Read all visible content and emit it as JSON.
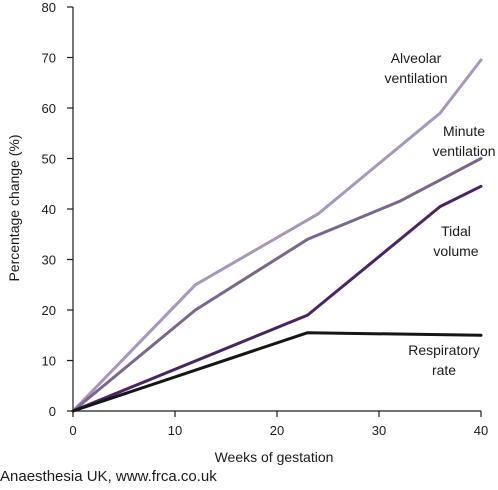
{
  "credit": "Anaesthesia UK, www.frca.co.uk",
  "chart_data": {
    "type": "line",
    "title": "",
    "xlabel": "Weeks of gestation",
    "ylabel": "Percentage change (%)",
    "xlim": [
      0,
      40
    ],
    "ylim": [
      0,
      80
    ],
    "xticks": [
      0,
      10,
      20,
      30,
      40
    ],
    "yticks": [
      0,
      10,
      20,
      30,
      40,
      50,
      60,
      70,
      80
    ],
    "grid": false,
    "legend": "inline labels beside each line",
    "series": [
      {
        "name": "Alveolar ventilation",
        "label_lines": [
          "Alveolar",
          "ventilation"
        ],
        "color": "#a797bd",
        "x": [
          0,
          12,
          24,
          36,
          40
        ],
        "y": [
          0,
          25,
          39,
          59,
          69.5
        ]
      },
      {
        "name": "Minute ventilation",
        "label_lines": [
          "Minute",
          "ventilation"
        ],
        "color": "#7a6790",
        "x": [
          0,
          12,
          23,
          32,
          40
        ],
        "y": [
          0,
          20,
          34,
          41.5,
          50
        ]
      },
      {
        "name": "Tidal volume",
        "label_lines": [
          "Tidal",
          "volume"
        ],
        "color": "#4a2566",
        "x": [
          0,
          23,
          36,
          40
        ],
        "y": [
          0,
          19,
          40.5,
          44.5
        ]
      },
      {
        "name": "Respiratory rate",
        "label_lines": [
          "Respiratory",
          "rate"
        ],
        "color": "#161616",
        "x": [
          0,
          23,
          40
        ],
        "y": [
          0,
          15.5,
          15
        ]
      }
    ]
  }
}
